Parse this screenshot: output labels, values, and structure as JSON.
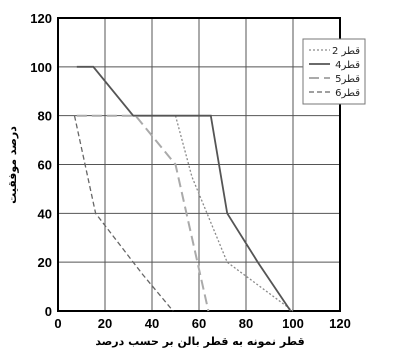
{
  "chart_data": {
    "type": "line",
    "title": "",
    "xlabel": "قطر نمونه به قطر بالن بر حسب درصد",
    "ylabel": "درصد موفقيت",
    "xlim": [
      0,
      120
    ],
    "ylim": [
      0,
      120
    ],
    "xticks": [
      0,
      20,
      40,
      60,
      80,
      100,
      120
    ],
    "yticks": [
      0,
      20,
      40,
      60,
      80,
      100,
      120
    ],
    "grid": true,
    "legend_position": "top-right",
    "series": [
      {
        "name": "قطر 2",
        "color": "#8a8a8a",
        "dash": "dotted",
        "points": [
          [
            50,
            80
          ],
          [
            57,
            55
          ],
          [
            72,
            20
          ],
          [
            100,
            0
          ]
        ]
      },
      {
        "name": "قطر4",
        "color": "#555555",
        "dash": "solid",
        "points": [
          [
            8,
            100
          ],
          [
            15,
            100
          ],
          [
            32,
            80
          ],
          [
            65,
            80
          ],
          [
            72,
            40
          ],
          [
            85,
            20
          ],
          [
            99,
            0
          ]
        ]
      },
      {
        "name": "قطر5",
        "color": "#aaaaaa",
        "dash": "long-dash",
        "points": [
          [
            8,
            80
          ],
          [
            33,
            80
          ],
          [
            50,
            60
          ],
          [
            64,
            0
          ]
        ]
      },
      {
        "name": "قطر6",
        "color": "#666666",
        "dash": "dashed",
        "points": [
          [
            7,
            80
          ],
          [
            16,
            40
          ],
          [
            36,
            15
          ],
          [
            49,
            0
          ]
        ]
      }
    ]
  }
}
